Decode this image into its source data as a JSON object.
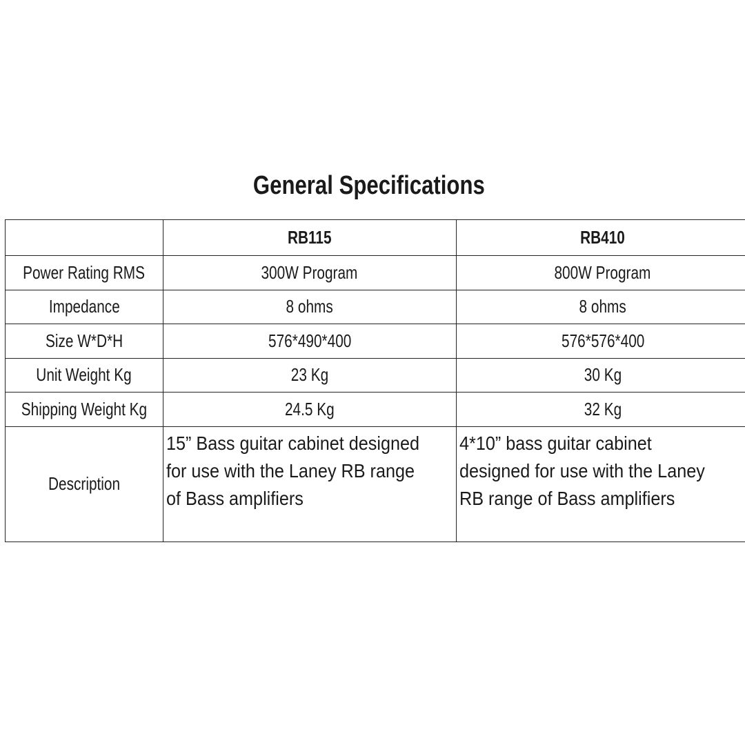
{
  "title": "General Specifications",
  "columns": [
    "",
    "RB115",
    "RB410"
  ],
  "rows": [
    {
      "label": "Power Rating RMS",
      "values": [
        "300W  Program",
        "800W Program"
      ]
    },
    {
      "label": "Impedance",
      "values": [
        "8 ohms",
        "8 ohms"
      ]
    },
    {
      "label": "Size W*D*H",
      "values": [
        "576*490*400",
        "576*576*400"
      ]
    },
    {
      "label": "Unit Weight Kg",
      "values": [
        "23 Kg",
        "30 Kg"
      ]
    },
    {
      "label": "Shipping Weight Kg",
      "values": [
        "24.5 Kg",
        "32 Kg"
      ]
    }
  ],
  "description": {
    "label": "Description",
    "values": [
      "15” Bass guitar cabinet designed for use with the Laney RB range of Bass amplifiers",
      "4*10” bass guitar cabinet designed for use with the Laney RB range of Bass amplifiers"
    ]
  }
}
